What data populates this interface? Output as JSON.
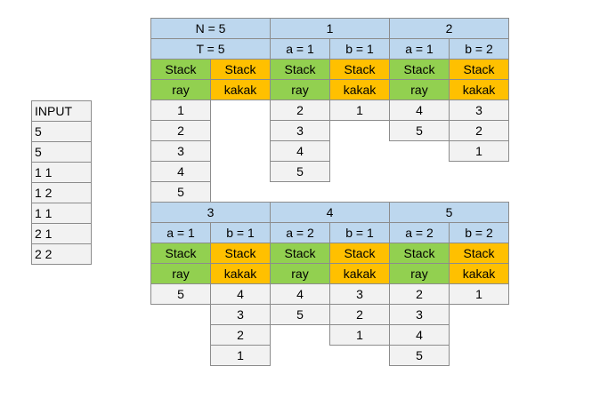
{
  "input": {
    "title": "INPUT",
    "lines": [
      "5",
      "5",
      "1 1",
      "1 2",
      "1 1",
      "2 1",
      "2 2"
    ]
  },
  "header_n": "N = 5",
  "header_t": "T = 5",
  "labels": {
    "stack": "Stack",
    "ray": "ray",
    "kakak": "kakak"
  },
  "initial": {
    "ray": [
      "1",
      "2",
      "3",
      "4",
      "5"
    ],
    "kakak": []
  },
  "steps": [
    {
      "step": "1",
      "a": "a = 1",
      "b": "b = 1",
      "ray": [
        "2",
        "3",
        "4",
        "5"
      ],
      "kakak": [
        "1"
      ]
    },
    {
      "step": "2",
      "a": "a = 1",
      "b": "b = 2",
      "ray": [
        "4",
        "5"
      ],
      "kakak": [
        "3",
        "2",
        "1"
      ]
    },
    {
      "step": "3",
      "a": "a = 1",
      "b": "b = 1",
      "ray": [
        "5"
      ],
      "kakak": [
        "4",
        "3",
        "2",
        "1"
      ]
    },
    {
      "step": "4",
      "a": "a = 2",
      "b": "b = 1",
      "ray": [
        "4",
        "5"
      ],
      "kakak": [
        "3",
        "2",
        "1"
      ]
    },
    {
      "step": "5",
      "a": "a = 2",
      "b": "b = 2",
      "ray": [
        "2",
        "3",
        "4",
        "5"
      ],
      "kakak": [
        "1"
      ]
    }
  ],
  "colors": {
    "header": "#bdd7ee",
    "ray_stack": "#92d050",
    "kakak_stack": "#ffc000",
    "value": "#f2f2f2"
  }
}
